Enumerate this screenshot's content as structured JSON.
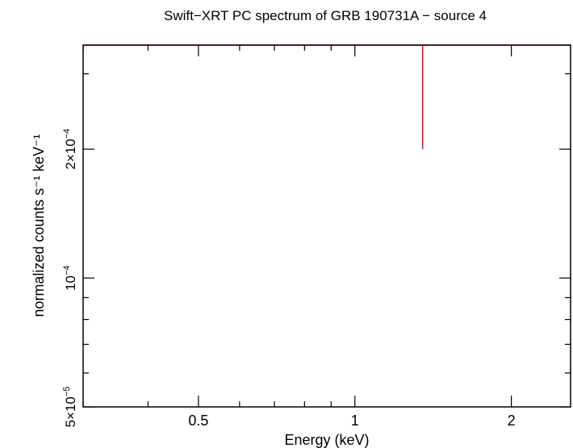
{
  "chart_data": {
    "type": "line",
    "title": "Swift−XRT PC spectrum of GRB 190731A − source 4",
    "xlabel": "Energy (keV)",
    "ylabel": "normalized counts s⁻¹ keV⁻¹",
    "xscale": "log",
    "yscale": "log",
    "xlim": [
      0.3,
      2.6
    ],
    "ylim": [
      5e-05,
      0.00035
    ],
    "x_ticks": [
      {
        "value": 0.5,
        "label": "0.5"
      },
      {
        "value": 1,
        "label": "1"
      },
      {
        "value": 2,
        "label": "2"
      }
    ],
    "y_ticks": [
      {
        "value": 5e-05,
        "base": "5×10",
        "exp": "−5"
      },
      {
        "value": 0.0001,
        "base": "10",
        "exp": "−4"
      },
      {
        "value": 0.0002,
        "base": "2×10",
        "exp": "−4"
      }
    ],
    "series": [
      {
        "color": "#ff0000",
        "points": [
          {
            "x": 1.35,
            "y": 0.00035,
            "y_low": 0.0002,
            "y_high": 0.00035
          }
        ],
        "xbin": [
          0.3,
          2.6
        ]
      }
    ],
    "grid": false
  }
}
